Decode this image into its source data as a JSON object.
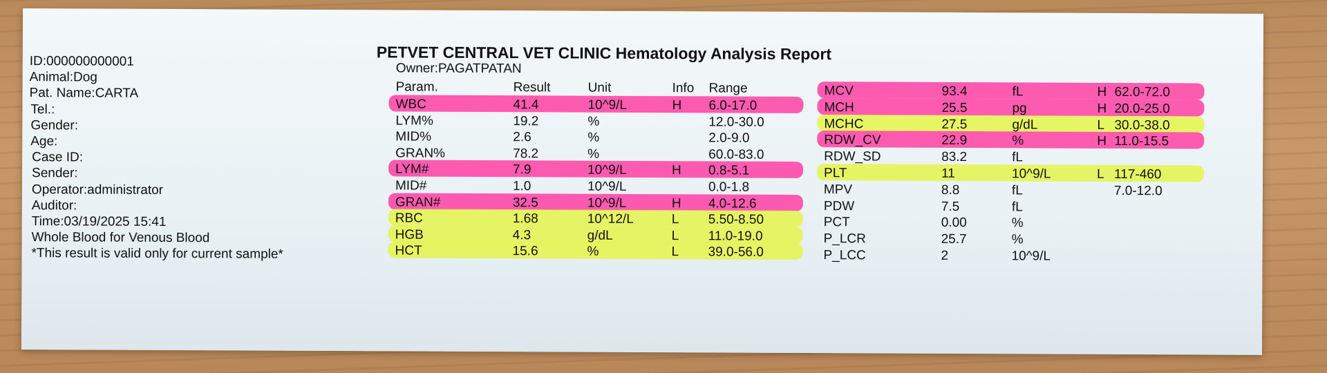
{
  "header": {
    "title": "PETVET CENTRAL VET CLINIC Hematology Analysis Report",
    "owner": "Owner:PAGATPATAN"
  },
  "patient": {
    "lines": [
      "ID:000000000001",
      "Animal:Dog",
      "Pat. Name:CARTA",
      "Tel.:",
      "Gender:",
      "Age:",
      "Case ID:",
      "Sender:",
      "Operator:administrator",
      "Auditor:",
      "Time:03/19/2025 15:41",
      "Whole Blood for Venous Blood",
      "*This result is valid only for current sample*"
    ]
  },
  "columns": {
    "param": "Param.",
    "result": "Result",
    "unit": "Unit",
    "info": "Info",
    "range": "Range"
  },
  "left_rows": [
    {
      "param": "WBC",
      "result": "41.4",
      "unit": "10^9/L",
      "info": "H",
      "range": "6.0-17.0",
      "highlight": "pink"
    },
    {
      "param": "LYM%",
      "result": "19.2",
      "unit": "%",
      "info": "",
      "range": "12.0-30.0",
      "highlight": ""
    },
    {
      "param": "MID%",
      "result": "2.6",
      "unit": "%",
      "info": "",
      "range": "2.0-9.0",
      "highlight": ""
    },
    {
      "param": "GRAN%",
      "result": "78.2",
      "unit": "%",
      "info": "",
      "range": "60.0-83.0",
      "highlight": ""
    },
    {
      "param": "LYM#",
      "result": "7.9",
      "unit": "10^9/L",
      "info": "H",
      "range": "0.8-5.1",
      "highlight": "pink"
    },
    {
      "param": "MID#",
      "result": "1.0",
      "unit": "10^9/L",
      "info": "",
      "range": "0.0-1.8",
      "highlight": ""
    },
    {
      "param": "GRAN#",
      "result": "32.5",
      "unit": "10^9/L",
      "info": "H",
      "range": "4.0-12.6",
      "highlight": "pink"
    },
    {
      "param": "RBC",
      "result": "1.68",
      "unit": "10^12/L",
      "info": "L",
      "range": "5.50-8.50",
      "highlight": "yellow"
    },
    {
      "param": "HGB",
      "result": "4.3",
      "unit": "g/dL",
      "info": "L",
      "range": "11.0-19.0",
      "highlight": "yellow"
    },
    {
      "param": "HCT",
      "result": "15.6",
      "unit": "%",
      "info": "L",
      "range": "39.0-56.0",
      "highlight": "yellow"
    }
  ],
  "right_rows": [
    {
      "param": "MCV",
      "result": "93.4",
      "unit": "fL",
      "info": "H",
      "range": "62.0-72.0",
      "highlight": "pink"
    },
    {
      "param": "MCH",
      "result": "25.5",
      "unit": "pg",
      "info": "H",
      "range": "20.0-25.0",
      "highlight": "pink"
    },
    {
      "param": "MCHC",
      "result": "27.5",
      "unit": "g/dL",
      "info": "L",
      "range": "30.0-38.0",
      "highlight": "yellow"
    },
    {
      "param": "RDW_CV",
      "result": "22.9",
      "unit": "%",
      "info": "H",
      "range": "11.0-15.5",
      "highlight": "pink"
    },
    {
      "param": "RDW_SD",
      "result": "83.2",
      "unit": "fL",
      "info": "",
      "range": "",
      "highlight": ""
    },
    {
      "param": "PLT",
      "result": "11",
      "unit": "10^9/L",
      "info": "L",
      "range": "117-460",
      "highlight": "yellow"
    },
    {
      "param": "MPV",
      "result": "8.8",
      "unit": "fL",
      "info": "",
      "range": "7.0-12.0",
      "highlight": ""
    },
    {
      "param": "PDW",
      "result": "7.5",
      "unit": "fL",
      "info": "",
      "range": "",
      "highlight": ""
    },
    {
      "param": "PCT",
      "result": "0.00",
      "unit": "%",
      "info": "",
      "range": "",
      "highlight": ""
    },
    {
      "param": "P_LCR",
      "result": "25.7",
      "unit": "%",
      "info": "",
      "range": "",
      "highlight": ""
    },
    {
      "param": "P_LCC",
      "result": "2",
      "unit": "10^9/L",
      "info": "",
      "range": "",
      "highlight": ""
    }
  ],
  "colors": {
    "pink_marker": "#ff3fa3",
    "yellow_marker": "#e4f54a",
    "paper": "#eef4f7",
    "table": "#b98a5a"
  }
}
